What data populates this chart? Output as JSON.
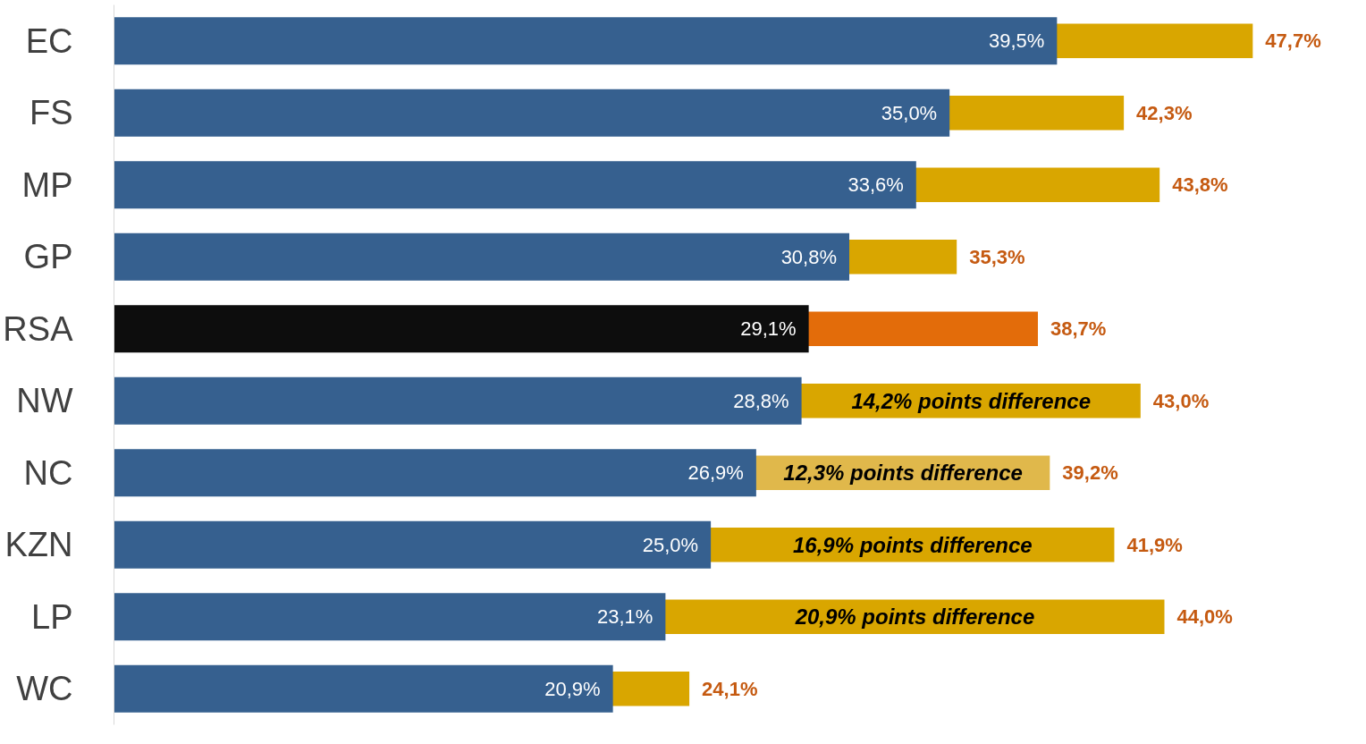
{
  "chart_data": {
    "type": "bar",
    "orientation": "horizontal",
    "categories": [
      "EC",
      "FS",
      "MP",
      "GP",
      "RSA",
      "NW",
      "NC",
      "KZN",
      "LP",
      "WC"
    ],
    "series": [
      {
        "colors": [
          "#d9a600",
          "#d9a600",
          "#d9a600",
          "#d9a600",
          "#e36c0a",
          "#d9a600",
          "#e0b84b",
          "#d9a600",
          "#d9a600",
          "#d9a600"
        ],
        "values": [
          47.7,
          42.3,
          43.8,
          35.3,
          38.7,
          43.0,
          39.2,
          41.9,
          44.0,
          24.1
        ],
        "value_labels": [
          "47,7%",
          "42,3%",
          "43,8%",
          "35,3%",
          "38,7%",
          "43,0%",
          "39,2%",
          "41,9%",
          "44,0%",
          "24,1%"
        ]
      },
      {
        "colors": [
          "#36608f",
          "#36608f",
          "#36608f",
          "#36608f",
          "#0d0d0d",
          "#36608f",
          "#36608f",
          "#36608f",
          "#36608f",
          "#36608f"
        ],
        "values": [
          39.5,
          35.0,
          33.6,
          30.8,
          29.1,
          28.8,
          26.9,
          25.0,
          23.1,
          20.9
        ],
        "value_labels": [
          "39,5%",
          "35,0%",
          "33,6%",
          "30,8%",
          "29,1%",
          "28,8%",
          "26,9%",
          "25,0%",
          "23,1%",
          "20,9%"
        ]
      }
    ],
    "annotations": [
      "14,2% points difference",
      "12,3% points difference",
      "16,9% points difference",
      "20,9% points difference"
    ],
    "tick_labels": "y",
    "grid": false
  }
}
